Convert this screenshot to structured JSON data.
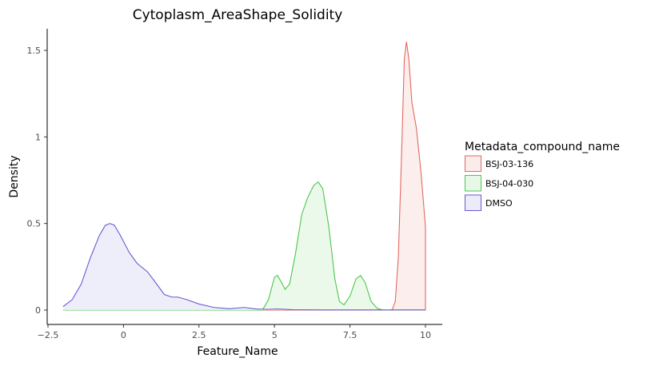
{
  "chart_data": {
    "type": "area",
    "title": "Cytoplasm_AreaShape_Solidity",
    "xlabel": "Feature_Name",
    "ylabel": "Density",
    "xlim": [
      -2.5,
      10
    ],
    "ylim": [
      0,
      1.6
    ],
    "x_ticks": [
      -2.5,
      0,
      2.5,
      5,
      7.5,
      10
    ],
    "x_tick_labels": [
      "−2.5",
      "0",
      "2.5",
      "5",
      "7.5",
      "10"
    ],
    "y_ticks": [
      0,
      0.5,
      1,
      1.5
    ],
    "y_tick_labels": [
      "0",
      "0.5",
      "1",
      "1.5"
    ],
    "grid": false,
    "legend": {
      "title": "Metadata_compound_name",
      "position": "right"
    },
    "series": [
      {
        "name": "BSJ-03-136",
        "color": "#E06A60",
        "fill": "#FBEBEA",
        "points": [
          [
            -2,
            0
          ],
          [
            8.8,
            0
          ],
          [
            8.9,
            0.002
          ],
          [
            9.0,
            0.05
          ],
          [
            9.1,
            0.3
          ],
          [
            9.2,
            0.85
          ],
          [
            9.3,
            1.45
          ],
          [
            9.37,
            1.55
          ],
          [
            9.45,
            1.45
          ],
          [
            9.55,
            1.2
          ],
          [
            9.7,
            1.05
          ],
          [
            9.85,
            0.8
          ],
          [
            10,
            0.48
          ],
          [
            10,
            0
          ]
        ]
      },
      {
        "name": "BSJ-04-030",
        "color": "#4CC84C",
        "fill": "#E8F8E8",
        "points": [
          [
            -2,
            0
          ],
          [
            4.6,
            0
          ],
          [
            4.8,
            0.06
          ],
          [
            5.0,
            0.19
          ],
          [
            5.1,
            0.2
          ],
          [
            5.2,
            0.17
          ],
          [
            5.35,
            0.12
          ],
          [
            5.5,
            0.15
          ],
          [
            5.7,
            0.33
          ],
          [
            5.9,
            0.55
          ],
          [
            6.1,
            0.65
          ],
          [
            6.3,
            0.72
          ],
          [
            6.45,
            0.74
          ],
          [
            6.6,
            0.7
          ],
          [
            6.8,
            0.48
          ],
          [
            7.0,
            0.18
          ],
          [
            7.15,
            0.05
          ],
          [
            7.3,
            0.03
          ],
          [
            7.5,
            0.08
          ],
          [
            7.7,
            0.18
          ],
          [
            7.85,
            0.2
          ],
          [
            8.0,
            0.16
          ],
          [
            8.2,
            0.05
          ],
          [
            8.4,
            0.01
          ],
          [
            8.6,
            0
          ],
          [
            10,
            0
          ]
        ]
      },
      {
        "name": "DMSO",
        "color": "#6A5ACD",
        "fill": "#EBEBFA",
        "points": [
          [
            -2,
            0.02
          ],
          [
            -1.7,
            0.06
          ],
          [
            -1.4,
            0.15
          ],
          [
            -1.1,
            0.3
          ],
          [
            -0.8,
            0.43
          ],
          [
            -0.6,
            0.49
          ],
          [
            -0.45,
            0.5
          ],
          [
            -0.3,
            0.49
          ],
          [
            -0.1,
            0.43
          ],
          [
            0.2,
            0.33
          ],
          [
            0.45,
            0.27
          ],
          [
            0.8,
            0.22
          ],
          [
            1.1,
            0.15
          ],
          [
            1.35,
            0.09
          ],
          [
            1.6,
            0.075
          ],
          [
            1.8,
            0.075
          ],
          [
            2.1,
            0.06
          ],
          [
            2.5,
            0.035
          ],
          [
            3.0,
            0.015
          ],
          [
            3.5,
            0.008
          ],
          [
            4.0,
            0.015
          ],
          [
            4.4,
            0.006
          ],
          [
            4.8,
            0.004
          ],
          [
            5.1,
            0.006
          ],
          [
            5.6,
            0.002
          ],
          [
            6.5,
            0.001
          ],
          [
            10,
            0.001
          ]
        ]
      }
    ]
  }
}
